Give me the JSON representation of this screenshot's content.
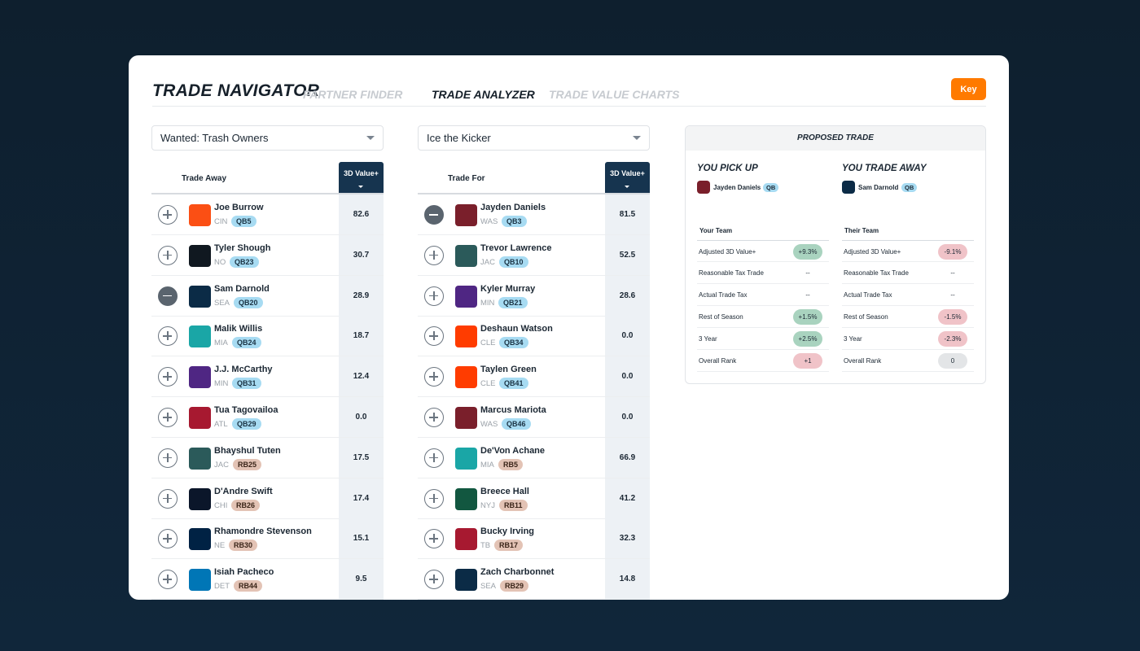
{
  "header": {
    "title": "TRADE NAVIGATOR",
    "tabs": [
      "PARTNER FINDER",
      "TRADE ANALYZER",
      "TRADE VALUE CHARTS"
    ],
    "key": "Key"
  },
  "left": {
    "team": "Wanted: Trash Owners",
    "column": "Trade Away",
    "value_header": "3D Value+",
    "players": [
      {
        "name": "Joe Burrow",
        "team": "CIN",
        "pos": "QB5",
        "value": "82.6"
      },
      {
        "name": "Tyler Shough",
        "team": "NO",
        "pos": "QB23",
        "value": "30.7"
      },
      {
        "name": "Sam Darnold",
        "team": "SEA",
        "pos": "QB20",
        "value": "28.9"
      },
      {
        "name": "Malik Willis",
        "team": "MIA",
        "pos": "QB24",
        "value": "18.7"
      },
      {
        "name": "J.J. McCarthy",
        "team": "MIN",
        "pos": "QB31",
        "value": "12.4"
      },
      {
        "name": "Tua Tagovailoa",
        "team": "ATL",
        "pos": "QB29",
        "value": "0.0"
      },
      {
        "name": "Bhayshul Tuten",
        "team": "JAC",
        "pos": "RB25",
        "value": "17.5"
      },
      {
        "name": "D'Andre Swift",
        "team": "CHI",
        "pos": "RB26",
        "value": "17.4"
      },
      {
        "name": "Rhamondre Stevenson",
        "team": "NE",
        "pos": "RB30",
        "value": "15.1"
      },
      {
        "name": "Isiah Pacheco",
        "team": "DET",
        "pos": "RB44",
        "value": "9.5"
      }
    ]
  },
  "right": {
    "team": "Ice the Kicker",
    "column": "Trade For",
    "value_header": "3D Value+",
    "players": [
      {
        "name": "Jayden Daniels",
        "team": "WAS",
        "pos": "QB3",
        "value": "81.5"
      },
      {
        "name": "Trevor Lawrence",
        "team": "JAC",
        "pos": "QB10",
        "value": "52.5"
      },
      {
        "name": "Kyler Murray",
        "team": "MIN",
        "pos": "QB21",
        "value": "28.6"
      },
      {
        "name": "Deshaun Watson",
        "team": "CLE",
        "pos": "QB34",
        "value": "0.0"
      },
      {
        "name": "Taylen Green",
        "team": "CLE",
        "pos": "QB41",
        "value": "0.0"
      },
      {
        "name": "Marcus Mariota",
        "team": "WAS",
        "pos": "QB46",
        "value": "0.0"
      },
      {
        "name": "De'Von Achane",
        "team": "MIA",
        "pos": "RB5",
        "value": "66.9"
      },
      {
        "name": "Breece Hall",
        "team": "NYJ",
        "pos": "RB11",
        "value": "41.2"
      },
      {
        "name": "Bucky Irving",
        "team": "TB",
        "pos": "RB17",
        "value": "32.3"
      },
      {
        "name": "Zach Charbonnet",
        "team": "SEA",
        "pos": "RB29",
        "value": "14.8"
      }
    ]
  },
  "proposed": {
    "title": "PROPOSED TRADE",
    "pick_up": {
      "label": "YOU PICK UP",
      "player": "Jayden Daniels",
      "pos": "QB"
    },
    "trade_away": {
      "label": "YOU TRADE AWAY",
      "player": "Sam Darnold",
      "pos": "QB"
    },
    "your_team": {
      "title": "Your Team",
      "rows": [
        [
          "Adjusted 3D Value+",
          "+9.3%"
        ],
        [
          "Reasonable Tax Trade",
          "--"
        ],
        [
          "Actual Trade Tax",
          "--"
        ],
        [
          "Rest of Season",
          "+1.5%"
        ],
        [
          "3 Year",
          "+2.5%"
        ],
        [
          "Overall Rank",
          "+1"
        ]
      ]
    },
    "their_team": {
      "title": "Their Team",
      "rows": [
        [
          "Adjusted 3D Value+",
          "-9.1%"
        ],
        [
          "Reasonable Tax Trade",
          "--"
        ],
        [
          "Actual Trade Tax",
          "--"
        ],
        [
          "Rest of Season",
          "-1.5%"
        ],
        [
          "3 Year",
          "-2.3%"
        ],
        [
          "Overall Rank",
          "0"
        ]
      ]
    }
  }
}
